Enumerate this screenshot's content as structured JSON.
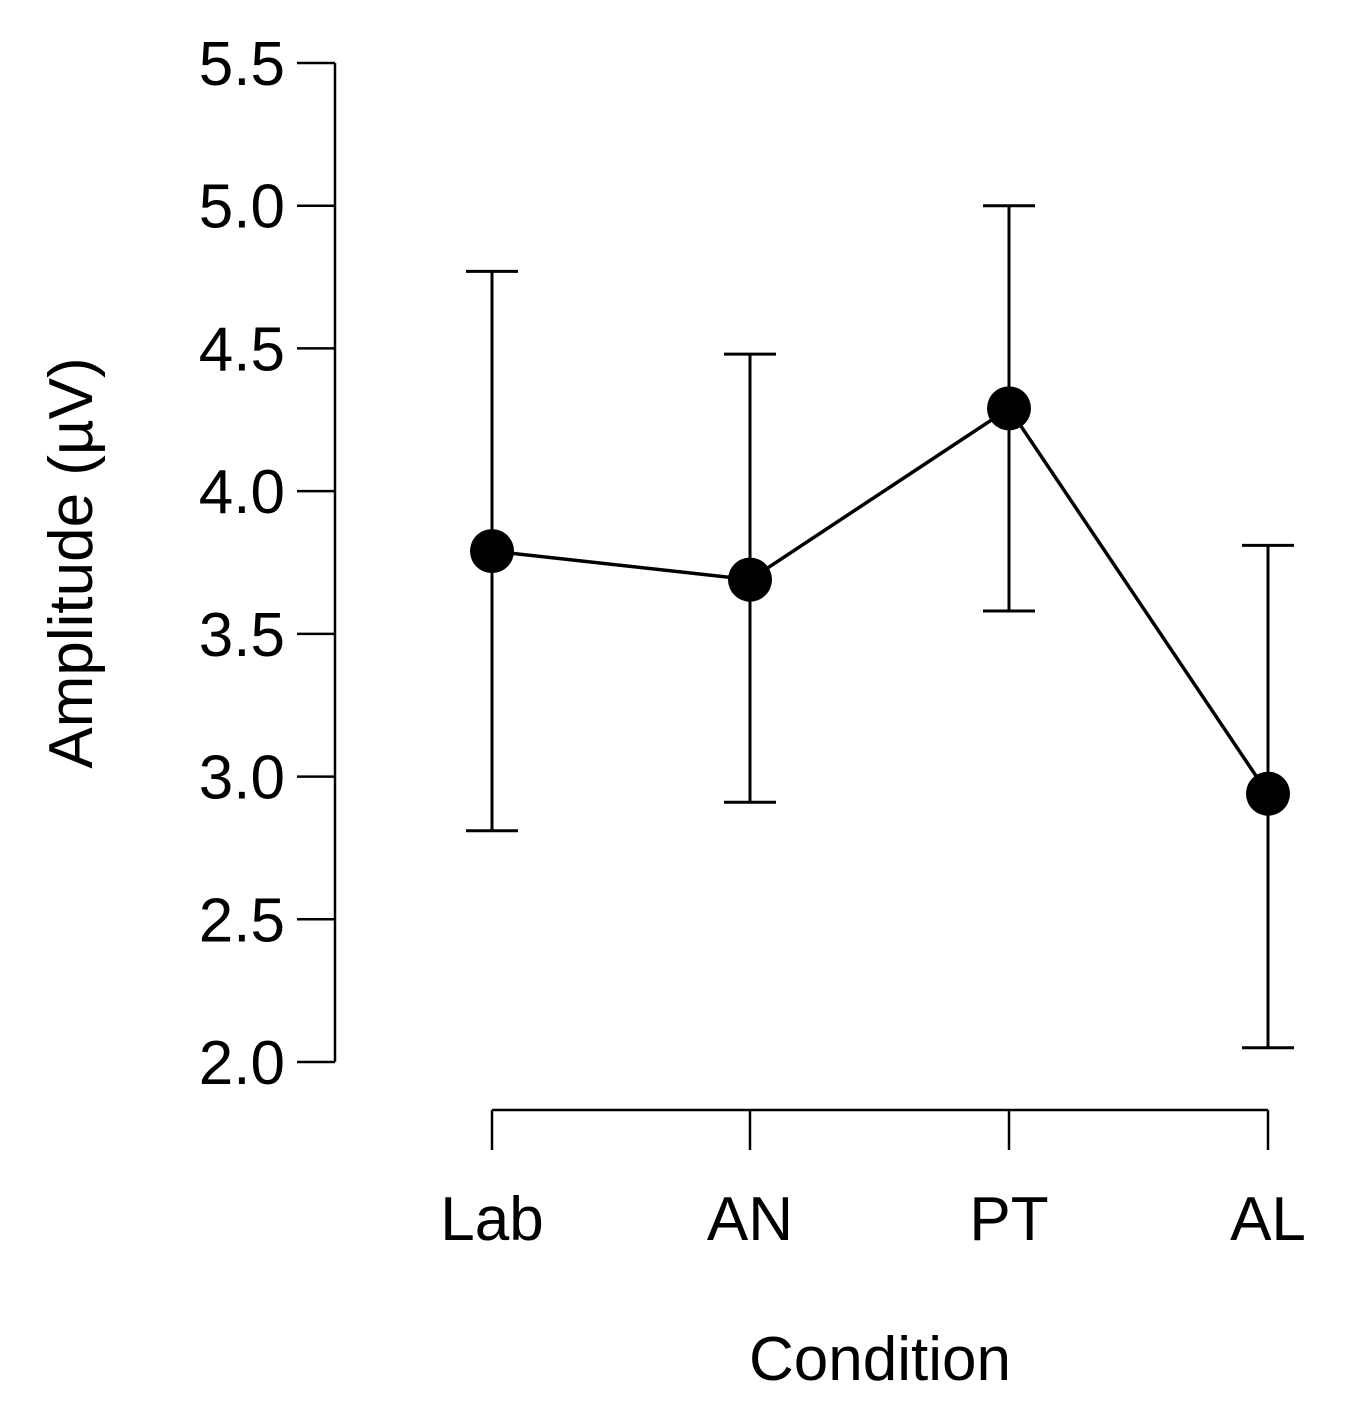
{
  "chart_data": {
    "type": "line",
    "title": "",
    "xlabel": "Condition",
    "ylabel": "Amplitude (µV)",
    "categories": [
      "Lab",
      "AN",
      "PT",
      "AL"
    ],
    "ylim": [
      2.0,
      5.5
    ],
    "yticks": [
      "2.0",
      "2.5",
      "3.0",
      "3.5",
      "4.0",
      "4.5",
      "5.0",
      "5.5"
    ],
    "grid": false,
    "series": [
      {
        "name": "Amplitude",
        "values": [
          3.79,
          3.69,
          4.29,
          2.94
        ],
        "error_lower": [
          2.81,
          2.91,
          3.58,
          2.05
        ],
        "error_upper": [
          4.77,
          4.48,
          5.0,
          3.81
        ]
      }
    ],
    "colors": {
      "line": "#000000",
      "marker": "#000000"
    }
  }
}
